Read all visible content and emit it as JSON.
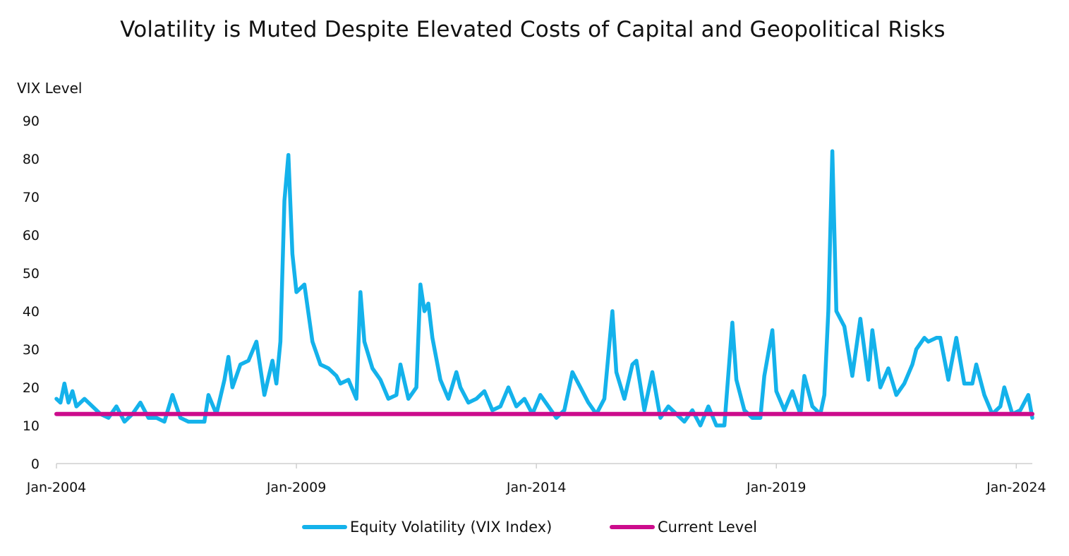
{
  "colors": {
    "vix": "#14b2eb",
    "current": "#cc0c8c",
    "axis": "#cfcfcf"
  },
  "chart_data": {
    "type": "line",
    "title": "Volatility is Muted Despite Elevated Costs of Capital and Geopolitical Risks",
    "ylabel": "VIX Level",
    "xlabel": "",
    "ylim": [
      0,
      90
    ],
    "yticks": [
      "0",
      "10",
      "20",
      "30",
      "40",
      "50",
      "60",
      "70",
      "80",
      "90"
    ],
    "xlim": [
      "2004-01",
      "2024-05"
    ],
    "xticks": [
      {
        "label": "Jan-2004",
        "x": "2004-01"
      },
      {
        "label": "Jan-2009",
        "x": "2009-01"
      },
      {
        "label": "Jan-2014",
        "x": "2014-01"
      },
      {
        "label": "Jan-2019",
        "x": "2019-01"
      },
      {
        "label": "Jan-2024",
        "x": "2024-01"
      }
    ],
    "grid": false,
    "legend_position": "bottom",
    "series": [
      {
        "name": "Equity Volatility (VIX Index)",
        "points": [
          [
            "2004-01",
            17
          ],
          [
            "2004-02",
            16
          ],
          [
            "2004-03",
            21
          ],
          [
            "2004-04",
            16
          ],
          [
            "2004-05",
            19
          ],
          [
            "2004-06",
            15
          ],
          [
            "2004-08",
            17
          ],
          [
            "2004-10",
            15
          ],
          [
            "2004-12",
            13
          ],
          [
            "2005-02",
            12
          ],
          [
            "2005-04",
            15
          ],
          [
            "2005-06",
            11
          ],
          [
            "2005-08",
            13
          ],
          [
            "2005-10",
            16
          ],
          [
            "2005-12",
            12
          ],
          [
            "2006-02",
            12
          ],
          [
            "2006-04",
            11
          ],
          [
            "2006-06",
            18
          ],
          [
            "2006-08",
            12
          ],
          [
            "2006-10",
            11
          ],
          [
            "2006-12",
            11
          ],
          [
            "2007-02",
            11
          ],
          [
            "2007-03",
            18
          ],
          [
            "2007-05",
            13
          ],
          [
            "2007-07",
            22
          ],
          [
            "2007-08",
            28
          ],
          [
            "2007-09",
            20
          ],
          [
            "2007-11",
            26
          ],
          [
            "2008-01",
            27
          ],
          [
            "2008-03",
            32
          ],
          [
            "2008-05",
            18
          ],
          [
            "2008-07",
            27
          ],
          [
            "2008-08",
            21
          ],
          [
            "2008-09",
            32
          ],
          [
            "2008-10",
            69
          ],
          [
            "2008-11",
            81
          ],
          [
            "2008-12",
            55
          ],
          [
            "2009-01",
            45
          ],
          [
            "2009-03",
            47
          ],
          [
            "2009-05",
            32
          ],
          [
            "2009-07",
            26
          ],
          [
            "2009-09",
            25
          ],
          [
            "2009-11",
            23
          ],
          [
            "2009-12",
            21
          ],
          [
            "2010-02",
            22
          ],
          [
            "2010-04",
            17
          ],
          [
            "2010-05",
            45
          ],
          [
            "2010-06",
            32
          ],
          [
            "2010-08",
            25
          ],
          [
            "2010-10",
            22
          ],
          [
            "2010-12",
            17
          ],
          [
            "2011-02",
            18
          ],
          [
            "2011-03",
            26
          ],
          [
            "2011-05",
            17
          ],
          [
            "2011-07",
            20
          ],
          [
            "2011-08",
            47
          ],
          [
            "2011-09",
            40
          ],
          [
            "2011-10",
            42
          ],
          [
            "2011-11",
            33
          ],
          [
            "2012-01",
            22
          ],
          [
            "2012-03",
            17
          ],
          [
            "2012-05",
            24
          ],
          [
            "2012-06",
            20
          ],
          [
            "2012-08",
            16
          ],
          [
            "2012-10",
            17
          ],
          [
            "2012-12",
            19
          ],
          [
            "2013-02",
            14
          ],
          [
            "2013-04",
            15
          ],
          [
            "2013-06",
            20
          ],
          [
            "2013-08",
            15
          ],
          [
            "2013-10",
            17
          ],
          [
            "2013-12",
            13
          ],
          [
            "2014-02",
            18
          ],
          [
            "2014-04",
            15
          ],
          [
            "2014-06",
            12
          ],
          [
            "2014-08",
            14
          ],
          [
            "2014-10",
            24
          ],
          [
            "2014-12",
            20
          ],
          [
            "2015-02",
            16
          ],
          [
            "2015-04",
            13
          ],
          [
            "2015-06",
            17
          ],
          [
            "2015-08",
            40
          ],
          [
            "2015-09",
            24
          ],
          [
            "2015-11",
            17
          ],
          [
            "2016-01",
            26
          ],
          [
            "2016-02",
            27
          ],
          [
            "2016-04",
            14
          ],
          [
            "2016-06",
            24
          ],
          [
            "2016-08",
            12
          ],
          [
            "2016-10",
            15
          ],
          [
            "2016-12",
            13
          ],
          [
            "2017-02",
            11
          ],
          [
            "2017-04",
            14
          ],
          [
            "2017-06",
            10
          ],
          [
            "2017-08",
            15
          ],
          [
            "2017-10",
            10
          ],
          [
            "2017-12",
            10
          ],
          [
            "2018-02",
            37
          ],
          [
            "2018-03",
            22
          ],
          [
            "2018-05",
            14
          ],
          [
            "2018-07",
            12
          ],
          [
            "2018-09",
            12
          ],
          [
            "2018-10",
            23
          ],
          [
            "2018-12",
            35
          ],
          [
            "2019-01",
            19
          ],
          [
            "2019-03",
            14
          ],
          [
            "2019-05",
            19
          ],
          [
            "2019-07",
            13
          ],
          [
            "2019-08",
            23
          ],
          [
            "2019-10",
            15
          ],
          [
            "2019-12",
            13
          ],
          [
            "2020-01",
            18
          ],
          [
            "2020-02",
            40
          ],
          [
            "2020-03",
            82
          ],
          [
            "2020-04",
            40
          ],
          [
            "2020-06",
            36
          ],
          [
            "2020-08",
            23
          ],
          [
            "2020-10",
            38
          ],
          [
            "2020-12",
            22
          ],
          [
            "2021-01",
            35
          ],
          [
            "2021-03",
            20
          ],
          [
            "2021-05",
            25
          ],
          [
            "2021-07",
            18
          ],
          [
            "2021-09",
            21
          ],
          [
            "2021-11",
            26
          ],
          [
            "2021-12",
            30
          ],
          [
            "2022-02",
            33
          ],
          [
            "2022-03",
            32
          ],
          [
            "2022-05",
            33
          ],
          [
            "2022-06",
            33
          ],
          [
            "2022-08",
            22
          ],
          [
            "2022-10",
            33
          ],
          [
            "2022-12",
            21
          ],
          [
            "2023-02",
            21
          ],
          [
            "2023-03",
            26
          ],
          [
            "2023-05",
            18
          ],
          [
            "2023-07",
            13
          ],
          [
            "2023-09",
            15
          ],
          [
            "2023-10",
            20
          ],
          [
            "2023-12",
            13
          ],
          [
            "2024-02",
            14
          ],
          [
            "2024-04",
            18
          ],
          [
            "2024-05",
            12
          ]
        ]
      },
      {
        "name": "Current Level",
        "points": [
          [
            "2004-01",
            13
          ],
          [
            "2024-05",
            13
          ]
        ]
      }
    ]
  }
}
